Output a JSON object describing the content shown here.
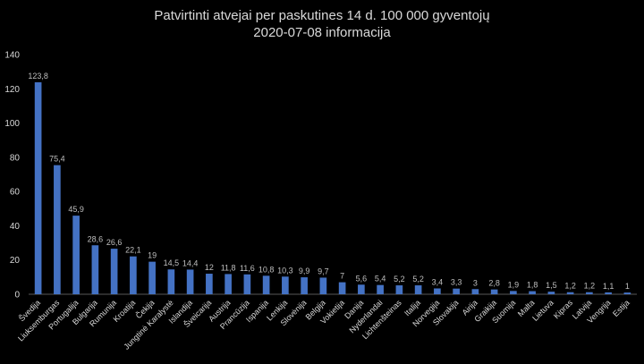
{
  "chart_data": {
    "type": "bar",
    "title": "Patvirtinti atvejai per paskutines 14 d. 100 000 gyventojų",
    "subtitle": "2020-07-08 informacija",
    "xlabel": "",
    "ylabel": "",
    "ylim": [
      0,
      140
    ],
    "yticks": [
      0,
      20,
      40,
      60,
      80,
      100,
      120,
      140
    ],
    "grid": false,
    "legend": "none",
    "bar_color": "#4472c4",
    "categories": [
      "Švedija",
      "Liuksemburgas",
      "Portugalija",
      "Bulgarija",
      "Rumunija",
      "Kroatija",
      "Čekija",
      "Jungtinė Karalystė",
      "Islandija",
      "Šveicarija",
      "Austrija",
      "Prancūzija",
      "Ispanija",
      "Lenkija",
      "Slovėnija",
      "Belgija",
      "Vokietija",
      "Danija",
      "Nyderlandai",
      "Lichtenšteinas",
      "Italija",
      "Norvegija",
      "Slovakija",
      "Airija",
      "Graikija",
      "Suomija",
      "Malta",
      "Lietuva",
      "Kipras",
      "Latvija",
      "Vengrija",
      "Estija"
    ],
    "values": [
      123.8,
      75.4,
      45.9,
      28.6,
      26.6,
      22.1,
      19,
      14.5,
      14.4,
      12,
      11.8,
      11.6,
      10.8,
      10.3,
      9.9,
      9.7,
      7,
      5.6,
      5.4,
      5.2,
      5.2,
      3.4,
      3.3,
      3,
      2.8,
      1.9,
      1.8,
      1.5,
      1.2,
      1.2,
      1.1,
      1
    ],
    "data_labels": [
      "123,8",
      "75,4",
      "45,9",
      "28,6",
      "26,6",
      "22,1",
      "19",
      "14,5",
      "14,4",
      "12",
      "11,8",
      "11,6",
      "10,8",
      "10,3",
      "9,9",
      "9,7",
      "7",
      "5,6",
      "5,4",
      "5,2",
      "5,2",
      "3,4",
      "3,3",
      "3",
      "2,8",
      "1,9",
      "1,8",
      "1,5",
      "1,2",
      "1,2",
      "1,1",
      "1"
    ]
  }
}
